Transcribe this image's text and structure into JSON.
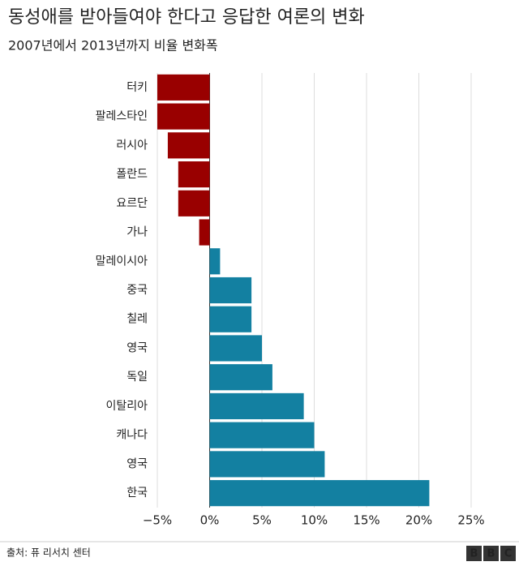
{
  "chart_data": {
    "type": "bar",
    "orientation": "horizontal",
    "title": "동성애를 받아들여야 한다고 응답한 여론의 변화",
    "subtitle": "2007년에서 2013년까지 비율 변화폭",
    "categories": [
      "터키",
      "팔레스타인",
      "러시아",
      "폴란드",
      "요르단",
      "가나",
      "말레이시아",
      "중국",
      "칠레",
      "영국",
      "독일",
      "이탈리아",
      "캐나다",
      "영국",
      "한국"
    ],
    "values": [
      -5,
      -5,
      -4,
      -3,
      -3,
      -1,
      1,
      4,
      4,
      5,
      6,
      9,
      10,
      11,
      21
    ],
    "negative_color": "#990000",
    "positive_color": "#1380a1",
    "xlim": [
      -5,
      25
    ],
    "xticks": [
      {
        "value": -5,
        "label": "−5%"
      },
      {
        "value": 0,
        "label": "0%"
      },
      {
        "value": 5,
        "label": "5%"
      },
      {
        "value": 10,
        "label": "10%"
      },
      {
        "value": 15,
        "label": "15%"
      },
      {
        "value": 20,
        "label": "20%"
      },
      {
        "value": 25,
        "label": "25%"
      }
    ],
    "grid": true,
    "source": "출처: 퓨 리서치 센터",
    "logo": [
      "B",
      "B",
      "C"
    ]
  }
}
